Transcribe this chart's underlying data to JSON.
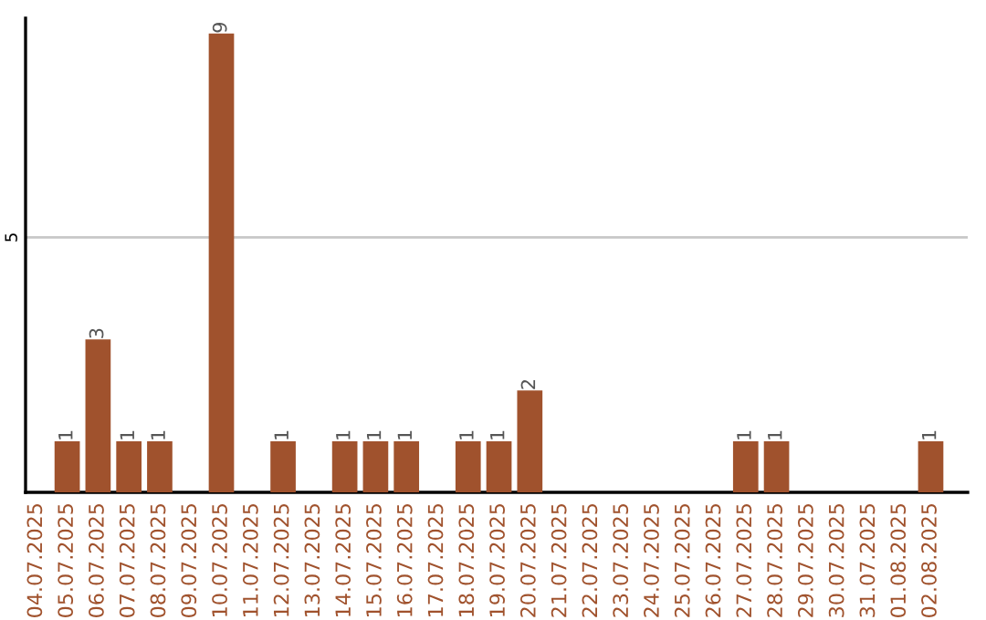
{
  "chart_data": {
    "type": "bar",
    "categories": [
      "04.07.2025",
      "05.07.2025",
      "06.07.2025",
      "07.07.2025",
      "08.07.2025",
      "09.07.2025",
      "10.07.2025",
      "11.07.2025",
      "12.07.2025",
      "13.07.2025",
      "14.07.2025",
      "15.07.2025",
      "16.07.2025",
      "17.07.2025",
      "18.07.2025",
      "19.07.2025",
      "20.07.2025",
      "21.07.2025",
      "22.07.2025",
      "23.07.2025",
      "24.07.2025",
      "25.07.2025",
      "26.07.2025",
      "27.07.2025",
      "28.07.2025",
      "29.07.2025",
      "30.07.2025",
      "31.07.2025",
      "01.08.2025",
      "02.08.2025"
    ],
    "values": [
      0,
      1,
      3,
      1,
      1,
      0,
      9,
      0,
      1,
      0,
      1,
      1,
      1,
      0,
      1,
      1,
      2,
      0,
      0,
      0,
      0,
      0,
      0,
      1,
      1,
      0,
      0,
      0,
      0,
      1
    ],
    "value_labels": [
      null,
      "1",
      "3",
      "1",
      "1",
      null,
      "9",
      null,
      "1",
      null,
      "1",
      "1",
      "1",
      null,
      "1",
      "1",
      "2",
      null,
      null,
      null,
      null,
      null,
      null,
      "1",
      "1",
      null,
      null,
      null,
      null,
      "1"
    ],
    "color": "#a0522d",
    "ylim": [
      0,
      9.3
    ],
    "yticks": [
      5
    ],
    "grid": "y",
    "legend": false
  }
}
